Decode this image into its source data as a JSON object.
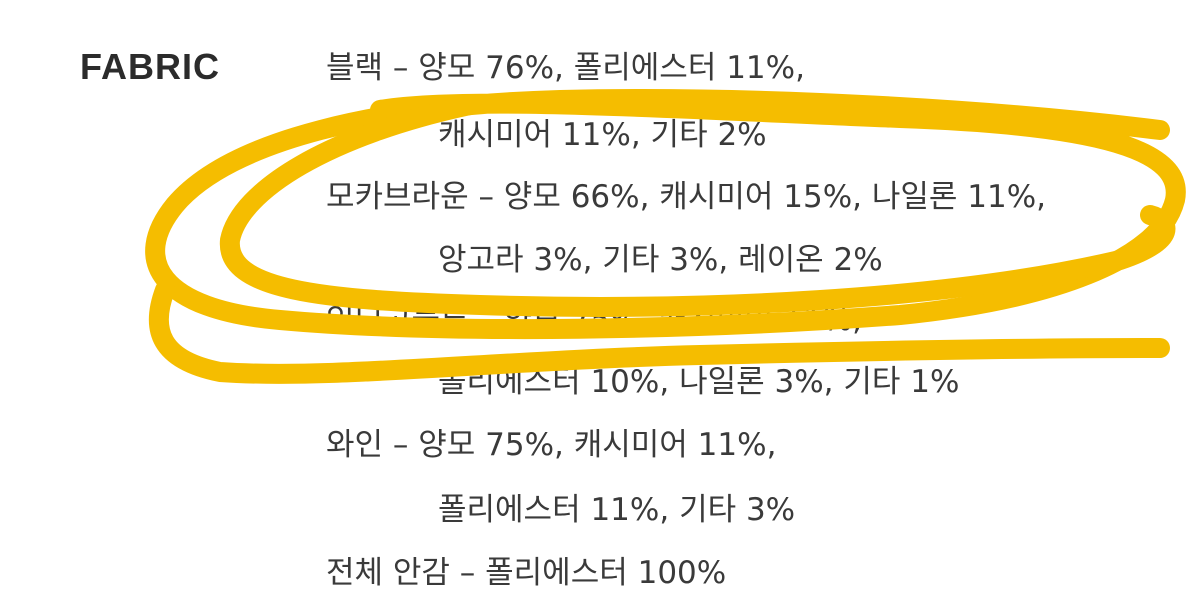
{
  "section_label": "FABRIC",
  "lines": [
    {
      "text": "블랙 – 양모 76%, 폴리에스터 11%,",
      "indent": false
    },
    {
      "text": "캐시미어 11%, 기타 2%",
      "indent": true
    },
    {
      "text": "모카브라운 – 양모 66%, 캐시미어 15%, 나일론 11%,",
      "indent": false
    },
    {
      "text": "앙고라 3%, 기타 3%, 레이온 2%",
      "indent": true
    },
    {
      "text": "인디고블루 – 양모 75%, 캐시미어 11%,",
      "indent": false
    },
    {
      "text": "폴리에스터 10%, 나일론 3%, 기타 1%",
      "indent": true
    },
    {
      "text": "와인 – 양모 75%, 캐시미어 11%,",
      "indent": false
    },
    {
      "text": "폴리에스터 11%, 기타 3%",
      "indent": true
    },
    {
      "text": "전체 안감 – 폴리에스터 100%",
      "indent": false
    }
  ],
  "annotation_color": "#F5BD00"
}
